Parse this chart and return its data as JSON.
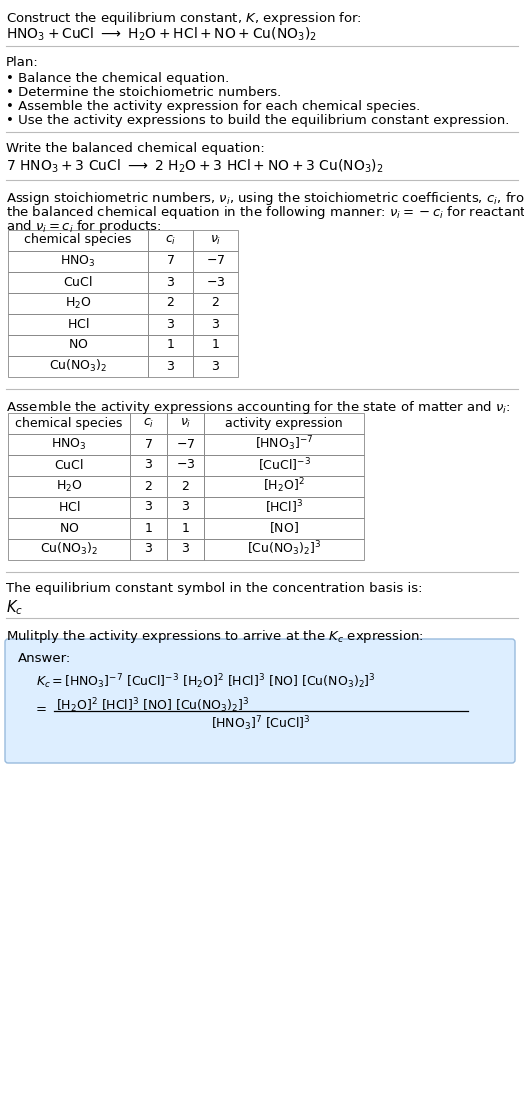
{
  "bg_color": "#ffffff",
  "separator_color": "#cccccc",
  "answer_box_bg": "#ddeeff",
  "answer_box_border": "#99bbdd",
  "font_size": 9.5,
  "small_font_size": 9.0,
  "chem_species_1": [
    "$\\mathrm{HNO_3}$",
    "$\\mathrm{CuCl}$",
    "$\\mathrm{H_2O}$",
    "$\\mathrm{HCl}$",
    "$\\mathrm{NO}$",
    "$\\mathrm{Cu(NO_3)_2}$"
  ],
  "ci_vals": [
    "7",
    "3",
    "2",
    "3",
    "1",
    "3"
  ],
  "nu_vals": [
    "$-7$",
    "$-3$",
    "$2$",
    "$3$",
    "$1$",
    "$3$"
  ],
  "activity_exprs": [
    "$\\mathrm{[HNO_3]^{-7}}$",
    "$\\mathrm{[CuCl]^{-3}}$",
    "$\\mathrm{[H_2O]^{2}}$",
    "$\\mathrm{[HCl]^{3}}$",
    "$\\mathrm{[NO]}$",
    "$\\mathrm{[Cu(NO_3)_2]^{3}}$"
  ]
}
